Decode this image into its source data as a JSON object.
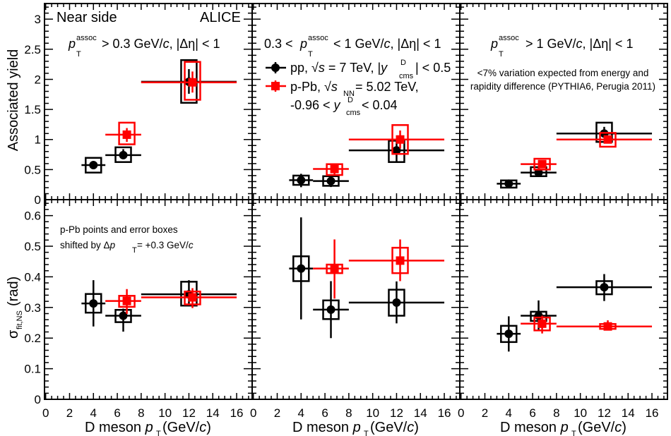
{
  "colors": {
    "pp": "#000000",
    "pPb": "#ff0000"
  },
  "labels": {
    "near_side": "Near side",
    "alice": "ALICE",
    "ylabel_top": "Associated yield",
    "ylabel_bottom_sigma": "σ",
    "ylabel_bottom_sub": "fit,NS",
    "ylabel_bottom_unit": " (rad)",
    "xlabel_main": "D meson ",
    "xlabel_p": "p",
    "xlabel_sub": "T",
    "xlabel_unit": " (GeV/",
    "xlabel_c": "c",
    "xlabel_close": ")",
    "p": "p",
    "assoc": "assoc",
    "T": "T",
    "title1_rest": " > 0.3 GeV/",
    "title2_pre": "0.3 < ",
    "title2_rest": " < 1 GeV/",
    "title3_rest": " > 1 GeV/",
    "c": "c",
    "deta": ", |Δη| < 1",
    "legend_pp_a": "pp, ",
    "legend_pp_sqrt": "√",
    "legend_pp_s": "s",
    "legend_pp_b": " = 7 TeV, |",
    "legend_y": "y",
    "legend_D": "D",
    "legend_cms": "cms",
    "legend_pp_c": "| < 0.5",
    "legend_ppb_a": "p-Pb, ",
    "legend_ppb_sqrt": "√",
    "legend_ppb_s": "s",
    "legend_ppb_nn": "NN",
    "legend_ppb_b": " = 5.02 TeV,",
    "legend_ppb_c1": "-0.96 < ",
    "legend_ppb_c2": " < 0.04",
    "note_pythia_1": "<7% variation expected from energy and",
    "note_pythia_2": "rapidity difference (PYTHIA6, Perugia 2011)",
    "note_shift_1": "p-Pb points and error boxes",
    "note_shift_2a": "shifted by Δ",
    "note_shift_2b": " = +0.3 GeV/"
  },
  "chart_data": {
    "type": "scatter",
    "title": "Near side",
    "xlabel": "D meson p_T (GeV/c)",
    "xlim": [
      -0.1,
      17.3
    ],
    "xticks": [
      0,
      2,
      4,
      6,
      8,
      10,
      12,
      14,
      16
    ],
    "grid": false,
    "legend": "top-center panel",
    "series_names": [
      "pp, √s = 7 TeV, |y^D_cms| < 0.5",
      "p-Pb, √s_NN = 5.02 TeV, -0.96 < y^D_cms < 0.04"
    ],
    "rows": [
      {
        "ylabel": "Associated yield",
        "ylim": [
          0,
          3.26
        ],
        "yticks": [
          0,
          0.5,
          1,
          1.5,
          2,
          2.5,
          3
        ],
        "ytick_labels": [
          "0",
          "0.5",
          "1",
          "1.5",
          "2",
          "2.5",
          "3"
        ],
        "minor": 0.1
      },
      {
        "ylabel": "σ_fit,NS (rad)",
        "ylim": [
          0,
          0.652
        ],
        "yticks": [
          0,
          0.1,
          0.2,
          0.3,
          0.4,
          0.5,
          0.6
        ],
        "ytick_labels": [
          "0",
          "0.1",
          "0.2",
          "0.3",
          "0.4",
          "0.5",
          "0.6"
        ],
        "minor": 0.02
      }
    ],
    "panels": [
      {
        "row": 0,
        "col": 0,
        "condition": "p_T^assoc > 0.3 GeV/c, |Δη| < 1",
        "series": [
          {
            "name": "pp",
            "points": [
              {
                "x": 4,
                "y": 0.574,
                "xlo": 3,
                "xhi": 5,
                "ylo": 0.53,
                "yhi": 0.63,
                "syslo": 0.45,
                "syshi": 0.695
              },
              {
                "x": 6.5,
                "y": 0.74,
                "xlo": 5,
                "xhi": 8,
                "ylo": 0.69,
                "yhi": 0.84,
                "syslo": 0.625,
                "syshi": 0.87
              },
              {
                "x": 12,
                "y": 1.96,
                "xlo": 8,
                "xhi": 16,
                "ylo": 1.76,
                "yhi": 2.17,
                "syslo": 1.61,
                "syshi": 2.32
              }
            ]
          },
          {
            "name": "pPb",
            "points": [
              {
                "x": 6.8,
                "y": 1.08,
                "xlo": 5,
                "xhi": 8,
                "ylo": 0.96,
                "yhi": 1.19,
                "syslo": 0.92,
                "syshi": 1.28
              },
              {
                "x": 12.3,
                "y": 1.95,
                "xlo": 8,
                "xhi": 16,
                "ylo": 1.78,
                "yhi": 2.13,
                "syslo": 1.66,
                "syshi": 2.29
              }
            ]
          }
        ]
      },
      {
        "row": 0,
        "col": 1,
        "condition": "0.3 < p_T^assoc < 1 GeV/c, |Δη| < 1",
        "series": [
          {
            "name": "pp",
            "points": [
              {
                "x": 4,
                "y": 0.324,
                "xlo": 3,
                "xhi": 5,
                "ylo": 0.207,
                "yhi": 0.43,
                "syslo": 0.246,
                "syshi": 0.4
              },
              {
                "x": 6.5,
                "y": 0.31,
                "xlo": 5,
                "xhi": 8,
                "ylo": 0.21,
                "yhi": 0.41,
                "syslo": 0.23,
                "syshi": 0.39
              },
              {
                "x": 12,
                "y": 0.82,
                "xlo": 8,
                "xhi": 16,
                "ylo": 0.63,
                "yhi": 1.0,
                "syslo": 0.625,
                "syshi": 0.98
              }
            ]
          },
          {
            "name": "pPb",
            "points": [
              {
                "x": 6.8,
                "y": 0.51,
                "xlo": 5,
                "xhi": 8,
                "ylo": 0.4,
                "yhi": 0.6,
                "syslo": 0.41,
                "syshi": 0.59
              },
              {
                "x": 12.3,
                "y": 1.0,
                "xlo": 8,
                "xhi": 16,
                "ylo": 0.85,
                "yhi": 1.15,
                "syslo": 0.76,
                "syshi": 1.24
              }
            ]
          }
        ]
      },
      {
        "row": 0,
        "col": 2,
        "condition": "p_T^assoc > 1 GeV/c, |Δη| < 1",
        "series": [
          {
            "name": "pp",
            "points": [
              {
                "x": 4,
                "y": 0.266,
                "xlo": 3,
                "xhi": 5,
                "ylo": 0.22,
                "yhi": 0.31,
                "syslo": 0.2,
                "syshi": 0.32
              },
              {
                "x": 6.5,
                "y": 0.45,
                "xlo": 5,
                "xhi": 8,
                "ylo": 0.41,
                "yhi": 0.5,
                "syslo": 0.39,
                "syshi": 0.54
              },
              {
                "x": 12,
                "y": 1.1,
                "xlo": 8,
                "xhi": 16,
                "ylo": 1.05,
                "yhi": 1.21,
                "syslo": 0.96,
                "syshi": 1.28
              }
            ]
          },
          {
            "name": "pPb",
            "points": [
              {
                "x": 6.8,
                "y": 0.59,
                "xlo": 5,
                "xhi": 8,
                "ylo": 0.53,
                "yhi": 0.64,
                "syslo": 0.5,
                "syshi": 0.68
              },
              {
                "x": 12.3,
                "y": 1.0,
                "xlo": 8,
                "xhi": 16,
                "ylo": 0.94,
                "yhi": 1.06,
                "syslo": 0.88,
                "syshi": 1.11
              }
            ]
          }
        ]
      },
      {
        "row": 1,
        "col": 0,
        "series": [
          {
            "name": "pp",
            "points": [
              {
                "x": 4,
                "y": 0.313,
                "xlo": 3,
                "xhi": 5,
                "ylo": 0.238,
                "yhi": 0.389,
                "syslo": 0.283,
                "syshi": 0.344
              },
              {
                "x": 6.5,
                "y": 0.273,
                "xlo": 5,
                "xhi": 8,
                "ylo": 0.221,
                "yhi": 0.296,
                "syslo": 0.252,
                "syshi": 0.292
              },
              {
                "x": 12,
                "y": 0.343,
                "xlo": 8,
                "xhi": 16,
                "ylo": 0.304,
                "yhi": 0.389,
                "syslo": 0.306,
                "syshi": 0.384
              }
            ]
          },
          {
            "name": "pPb",
            "points": [
              {
                "x": 6.8,
                "y": 0.321,
                "xlo": 5,
                "xhi": 8,
                "ylo": 0.279,
                "yhi": 0.36,
                "syslo": 0.302,
                "syshi": 0.338
              },
              {
                "x": 12.3,
                "y": 0.333,
                "xlo": 8,
                "xhi": 16,
                "ylo": 0.298,
                "yhi": 0.363,
                "syslo": 0.31,
                "syshi": 0.352
              }
            ]
          }
        ]
      },
      {
        "row": 1,
        "col": 1,
        "series": [
          {
            "name": "pp",
            "points": [
              {
                "x": 4,
                "y": 0.427,
                "xlo": 3,
                "xhi": 5,
                "ylo": 0.261,
                "yhi": 0.594,
                "syslo": 0.386,
                "syshi": 0.467
              },
              {
                "x": 6.5,
                "y": 0.293,
                "xlo": 5,
                "xhi": 8,
                "ylo": 0.2,
                "yhi": 0.386,
                "syslo": 0.262,
                "syshi": 0.323
              },
              {
                "x": 12,
                "y": 0.316,
                "xlo": 8,
                "xhi": 16,
                "ylo": 0.248,
                "yhi": 0.385,
                "syslo": 0.273,
                "syshi": 0.358
              }
            ]
          },
          {
            "name": "pPb",
            "points": [
              {
                "x": 6.8,
                "y": 0.427,
                "xlo": 5,
                "xhi": 8,
                "ylo": 0.329,
                "yhi": 0.522,
                "syslo": 0.412,
                "syshi": 0.44
              },
              {
                "x": 12.3,
                "y": 0.453,
                "xlo": 8,
                "xhi": 16,
                "ylo": 0.386,
                "yhi": 0.522,
                "syslo": 0.412,
                "syshi": 0.495
              }
            ]
          }
        ]
      },
      {
        "row": 1,
        "col": 2,
        "series": [
          {
            "name": "pp",
            "points": [
              {
                "x": 4,
                "y": 0.214,
                "xlo": 3,
                "xhi": 5,
                "ylo": 0.156,
                "yhi": 0.271,
                "syslo": 0.187,
                "syshi": 0.24
              },
              {
                "x": 6.5,
                "y": 0.273,
                "xlo": 5,
                "xhi": 8,
                "ylo": 0.224,
                "yhi": 0.323,
                "syslo": 0.256,
                "syshi": 0.286
              },
              {
                "x": 12,
                "y": 0.366,
                "xlo": 8,
                "xhi": 16,
                "ylo": 0.321,
                "yhi": 0.409,
                "syslo": 0.343,
                "syshi": 0.386
              }
            ]
          },
          {
            "name": "pPb",
            "points": [
              {
                "x": 6.8,
                "y": 0.247,
                "xlo": 5,
                "xhi": 8,
                "ylo": 0.215,
                "yhi": 0.273,
                "syslo": 0.225,
                "syshi": 0.267
              },
              {
                "x": 12.3,
                "y": 0.238,
                "xlo": 8,
                "xhi": 16,
                "ylo": 0.225,
                "yhi": 0.258,
                "syslo": 0.23,
                "syshi": 0.246
              }
            ]
          }
        ]
      }
    ]
  }
}
